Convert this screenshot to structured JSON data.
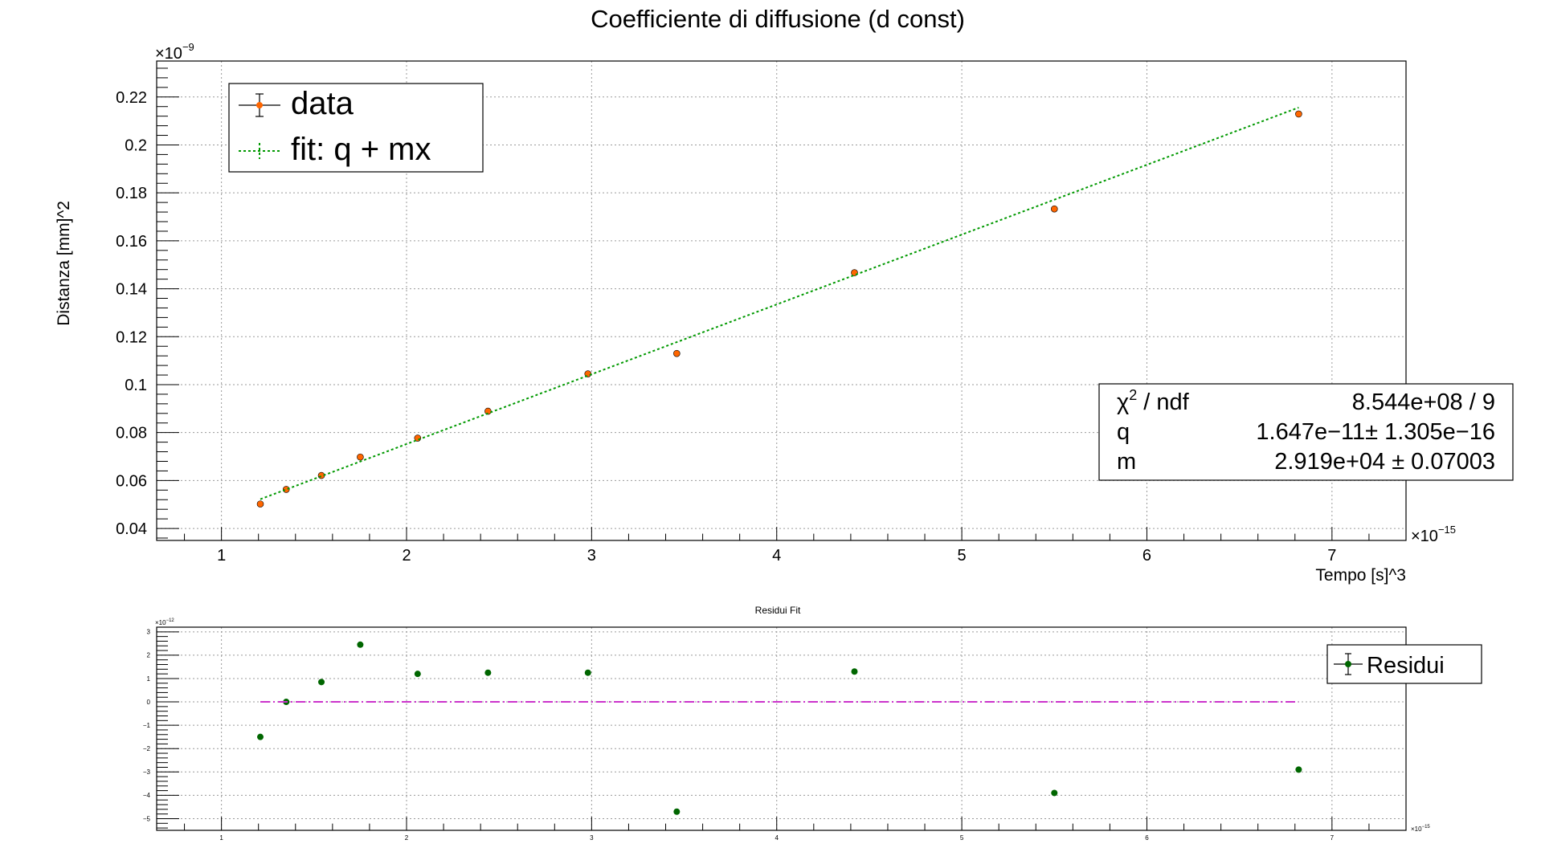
{
  "chart_data": [
    {
      "type": "scatter",
      "title": "Coefficiente di diffusione (d const)",
      "xlabel": "Tempo [s]^3",
      "ylabel": "Distanza [mm]^2",
      "x_exponent_label": "×10",
      "x_exponent_power": "−15",
      "y_exponent_label": "×10",
      "y_exponent_power": "−9",
      "xlim": [
        0.65,
        7.4
      ],
      "ylim": [
        0.035,
        0.235
      ],
      "x_ticks": [
        1,
        2,
        3,
        4,
        5,
        6,
        7
      ],
      "x_tick_labels": [
        "1",
        "2",
        "3",
        "4",
        "5",
        "6",
        "7"
      ],
      "y_ticks": [
        0.04,
        0.06,
        0.08,
        0.1,
        0.12,
        0.14,
        0.16,
        0.18,
        0.2,
        0.22
      ],
      "y_tick_labels": [
        "0.04",
        "0.06",
        "0.08",
        "0.1",
        "0.12",
        "0.14",
        "0.16",
        "0.18",
        "0.2",
        "0.22"
      ],
      "grid": true,
      "series": [
        {
          "name": "data",
          "color": "#ff6600",
          "x": [
            1.21,
            1.35,
            1.54,
            1.75,
            2.06,
            2.44,
            2.98,
            3.46,
            4.42,
            5.5,
            6.82
          ],
          "y": [
            0.0502,
            0.0563,
            0.0621,
            0.0698,
            0.0777,
            0.0889,
            0.1045,
            0.113,
            0.1467,
            0.1733,
            0.2129
          ]
        },
        {
          "name": "fit: q + mx",
          "color": "#009900",
          "style": "dotted",
          "x": [
            1.21,
            6.82
          ],
          "y": [
            0.0522,
            0.2156
          ]
        }
      ],
      "legend": {
        "placement": "top-left",
        "entries": [
          "data",
          "fit: q + mx"
        ]
      },
      "stats_box": {
        "placement": "right",
        "rows": [
          {
            "label_main": "χ",
            "label_sup": "2",
            "label_rest": " / ndf",
            "value": "8.544e+08 / 9"
          },
          {
            "label_main": "q",
            "label_sup": "",
            "label_rest": "",
            "value": "1.647e−11± 1.305e−16"
          },
          {
            "label_main": "m",
            "label_sup": "",
            "label_rest": "",
            "value": "2.919e+04 ± 0.07003"
          }
        ]
      }
    },
    {
      "type": "scatter",
      "title": "Residui Fit",
      "x_exponent_label": "×10",
      "x_exponent_power": "−15",
      "y_exponent_label": "×10",
      "y_exponent_power": "−12",
      "xlim": [
        0.65,
        7.4
      ],
      "ylim": [
        -5.5,
        3.2
      ],
      "x_ticks": [
        1,
        2,
        3,
        4,
        5,
        6,
        7
      ],
      "x_tick_labels": [
        "1",
        "2",
        "3",
        "4",
        "5",
        "6",
        "7"
      ],
      "y_ticks": [
        -5,
        -4,
        -3,
        -2,
        -1,
        0,
        1,
        2,
        3
      ],
      "y_tick_labels": [
        "−5",
        "−4",
        "−3",
        "−2",
        "−1",
        "0",
        "1",
        "2",
        "3"
      ],
      "grid": true,
      "series": [
        {
          "name": "Residui",
          "color": "#006600",
          "x": [
            1.21,
            1.35,
            1.54,
            1.75,
            2.06,
            2.44,
            2.98,
            3.46,
            4.42,
            5.5,
            6.82
          ],
          "y": [
            -1.5,
            0.0,
            0.85,
            2.45,
            1.2,
            1.25,
            1.25,
            -4.7,
            1.3,
            -3.9,
            -2.9
          ]
        },
        {
          "name": "zero-line",
          "color": "#cc33cc",
          "style": "dash-dot",
          "x": [
            1.21,
            6.82
          ],
          "y": [
            0,
            0
          ]
        }
      ],
      "legend": {
        "placement": "top-right",
        "entries": [
          "Residui"
        ]
      }
    }
  ]
}
